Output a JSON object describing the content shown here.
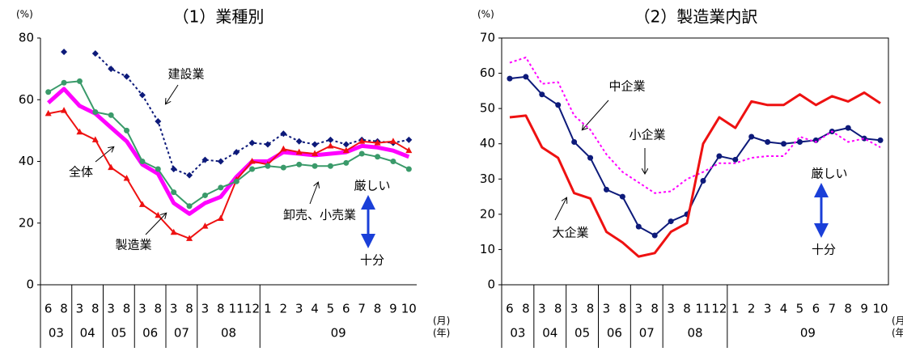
{
  "chart_data": [
    {
      "type": "line",
      "title": "（1）業種別",
      "ylabel": "(%)",
      "xlabel": "(月)",
      "xlabel2": "(年)",
      "categories": [
        "6",
        "8",
        "3",
        "8",
        "3",
        "8",
        "3",
        "8",
        "3",
        "8",
        "3",
        "8",
        "11",
        "12",
        "1",
        "2",
        "3",
        "4",
        "5",
        "6",
        "7",
        "8",
        "9",
        "10"
      ],
      "year_labels": [
        "03",
        null,
        "04",
        null,
        "05",
        null,
        "06",
        null,
        "07",
        null,
        "08",
        null,
        null,
        null,
        "09",
        null,
        null,
        null,
        null,
        null,
        null,
        null,
        null,
        null
      ],
      "ylim": [
        0,
        80
      ],
      "yticks": [
        0,
        20,
        40,
        60,
        80
      ],
      "grid": false,
      "annotations": [
        "厳しい",
        "十分"
      ],
      "series": [
        {
          "name": "建設業",
          "color": "#0d1a7a",
          "line_style": "dotted",
          "marker": "diamond",
          "values": [
            null,
            75.5,
            null,
            75,
            70,
            67.5,
            61.5,
            53,
            37.5,
            35.5,
            40.5,
            40,
            43,
            46,
            45.5,
            49,
            46.5,
            45.5,
            47,
            45.5,
            47,
            46.5,
            46,
            47
          ]
        },
        {
          "name": "全体",
          "color": "#ff00ff",
          "line_style": "solid",
          "line_width": 5,
          "marker": null,
          "values": [
            59,
            63.5,
            58,
            55.5,
            51,
            46.5,
            39,
            36,
            26.5,
            23,
            26.5,
            28.5,
            35,
            40,
            40,
            43,
            42.5,
            42,
            42.5,
            43,
            45,
            44.5,
            43.5,
            41.5
          ]
        },
        {
          "name": "製造業",
          "color": "#ee1111",
          "line_style": "solid",
          "marker": "triangle",
          "values": [
            55.5,
            56.5,
            49.5,
            47,
            38,
            34.5,
            26,
            22.5,
            17,
            15,
            19,
            21.5,
            34,
            40,
            39,
            44,
            43,
            42.5,
            45,
            43.5,
            46.5,
            46,
            46.5,
            43.5
          ]
        },
        {
          "name": "卸売、小売業",
          "color": "#3a9a6a",
          "line_style": "solid",
          "marker": "circle",
          "values": [
            62.5,
            65.5,
            66,
            56,
            55,
            50,
            40,
            37.5,
            30,
            25.5,
            29,
            31.5,
            33.5,
            37.5,
            38.5,
            38,
            39,
            38.5,
            38.5,
            39.5,
            42.5,
            41.5,
            40,
            37.5
          ]
        }
      ]
    },
    {
      "type": "line",
      "title": "（2）製造業内訳",
      "ylabel": "(%)",
      "xlabel": "(月)",
      "xlabel2": "(年)",
      "categories": [
        "6",
        "8",
        "3",
        "8",
        "3",
        "8",
        "3",
        "8",
        "3",
        "8",
        "3",
        "8",
        "11",
        "12",
        "1",
        "2",
        "3",
        "4",
        "5",
        "6",
        "7",
        "8",
        "9",
        "10"
      ],
      "year_labels": [
        "03",
        null,
        "04",
        null,
        "05",
        null,
        "06",
        null,
        "07",
        null,
        "08",
        null,
        null,
        null,
        "09",
        null,
        null,
        null,
        null,
        null,
        null,
        null,
        null,
        null
      ],
      "ylim": [
        0,
        70
      ],
      "yticks": [
        0,
        10,
        20,
        30,
        40,
        50,
        60,
        70
      ],
      "grid": false,
      "annotations": [
        "厳しい",
        "十分"
      ],
      "series": [
        {
          "name": "中企業",
          "color": "#0d1a7a",
          "line_style": "solid",
          "marker": "circle",
          "values": [
            58.5,
            59,
            54,
            51,
            40.5,
            36,
            27,
            25,
            16.5,
            14,
            18,
            20,
            29.5,
            36.5,
            35.5,
            42,
            40.5,
            40,
            40.5,
            41,
            43.5,
            44.5,
            41.5,
            41
          ]
        },
        {
          "name": "小企業",
          "color": "#ff00ff",
          "line_style": "dotted",
          "marker": null,
          "values": [
            63,
            64.5,
            57,
            57.5,
            48,
            44,
            37,
            32,
            29,
            26,
            26.5,
            30,
            32,
            34.5,
            34.5,
            36,
            36.5,
            36.5,
            42,
            40.5,
            43.5,
            40.5,
            41.5,
            39
          ]
        },
        {
          "name": "大企業",
          "color": "#ee1111",
          "line_style": "solid",
          "line_width": 3,
          "marker": null,
          "values": [
            47.5,
            48,
            39,
            36,
            26,
            24.5,
            15,
            12,
            8,
            9,
            15,
            17.5,
            40,
            47.5,
            44.5,
            52,
            51,
            51,
            54,
            51,
            53.5,
            52,
            54.5,
            51.5
          ]
        }
      ]
    }
  ]
}
